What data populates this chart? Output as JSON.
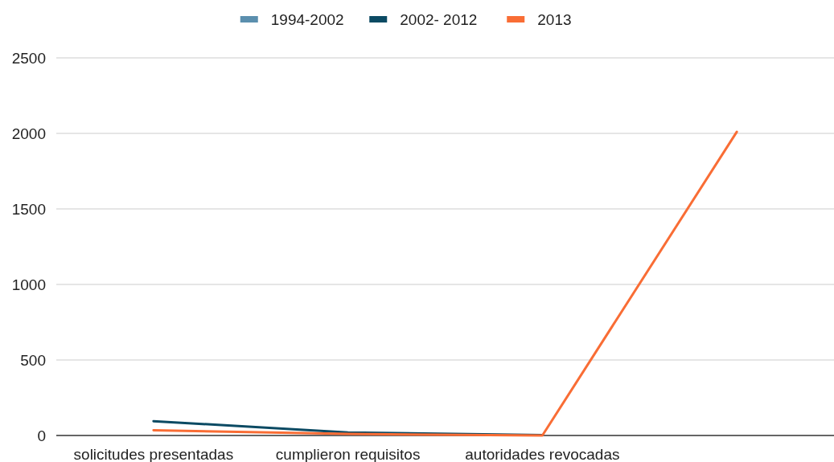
{
  "chart_data": {
    "type": "line",
    "categories": [
      "solicitudes presentadas",
      "cumplieron requisitos",
      "autoridades revocadas",
      null
    ],
    "series": [
      {
        "name": "1994-2002",
        "color": "#5b8fae",
        "values": [
          null,
          null,
          null,
          null
        ]
      },
      {
        "name": "2002- 2012",
        "color": "#0b4a63",
        "values": [
          95,
          20,
          2,
          null
        ]
      },
      {
        "name": "2013",
        "color": "#f96d35",
        "values": [
          35,
          10,
          0,
          2010
        ]
      }
    ],
    "ylim": [
      0,
      2500
    ],
    "yticks": [
      0,
      500,
      1000,
      1500,
      2000,
      2500
    ],
    "grid": "y",
    "legend": "top",
    "marker": "none",
    "line_style": "solid"
  }
}
